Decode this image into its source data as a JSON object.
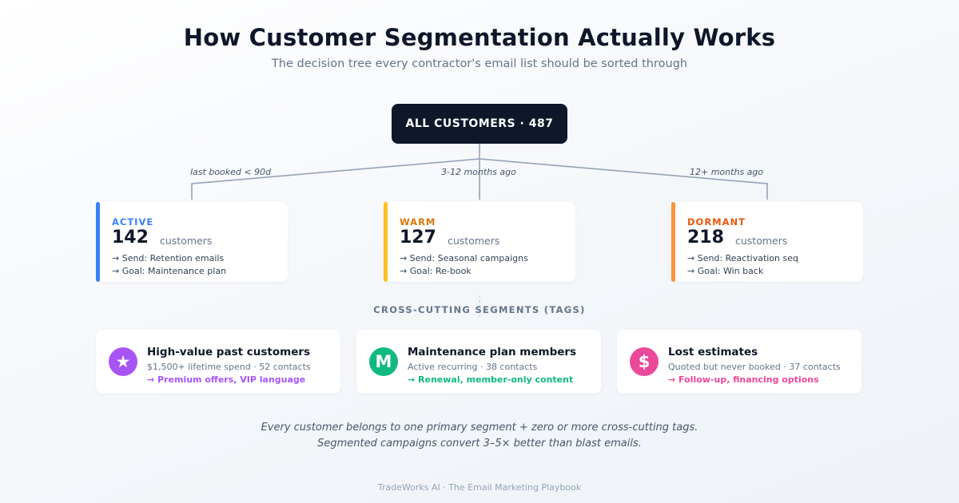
{
  "header": {
    "title": "How Customer Segmentation Actually Works",
    "subtitle": "The decision tree every contractor's email list should be sorted through"
  },
  "root": {
    "label": "ALL CUSTOMERS · 487"
  },
  "edges": [
    {
      "label": "last booked < 90d"
    },
    {
      "label": "3-12 months ago"
    },
    {
      "label": "12+ months ago"
    }
  ],
  "segments": [
    {
      "name": "ACTIVE",
      "count": "142",
      "unit": "customers",
      "send": "→ Send: Retention emails",
      "goal": "→ Goal: Maintenance plan",
      "color": "#3b82f6"
    },
    {
      "name": "WARM",
      "count": "127",
      "unit": "customers",
      "send": "→ Send: Seasonal campaigns",
      "goal": "→ Goal: Re-book",
      "color": "#fbbf24"
    },
    {
      "name": "DORMANT",
      "count": "218",
      "unit": "customers",
      "send": "→ Send: Reactivation seq",
      "goal": "→ Goal: Win back",
      "color": "#fb923c"
    }
  ],
  "tags_section": {
    "label": "CROSS-CUTTING SEGMENTS (TAGS)"
  },
  "tags": [
    {
      "icon": "star-icon",
      "glyph": "★",
      "name": "High-value past customers",
      "desc": "$1,500+ lifetime spend · 52 contacts",
      "action": "→ Premium offers, VIP language",
      "color": "#a855f7"
    },
    {
      "icon": "m-letter-icon",
      "glyph": "M",
      "name": "Maintenance plan members",
      "desc": "Active recurring · 38 contacts",
      "action": "→ Renewal, member-only content",
      "color": "#10b981"
    },
    {
      "icon": "dollar-icon",
      "glyph": "$",
      "name": "Lost estimates",
      "desc": "Quoted but never booked · 37 contacts",
      "action": "→ Follow-up, financing options",
      "color": "#ec4899"
    }
  ],
  "footer": {
    "note_line1": "Every customer belongs to one primary segment + zero or more cross-cutting tags.",
    "note_line2": "Segmented campaigns convert 3–5× better than blast emails.",
    "brand": "TradeWorks AI · The Email Marketing Playbook"
  },
  "colors": {
    "root_bg": "#0f172a",
    "connector": "#94a3b8",
    "active_label": "#3b82f6",
    "warm_label": "#d97706",
    "dormant_label": "#ea580c"
  }
}
